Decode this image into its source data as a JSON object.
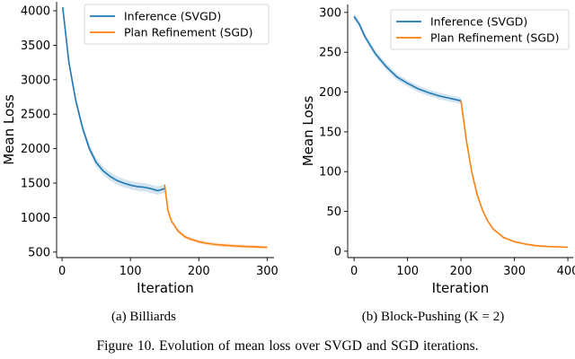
{
  "colors": {
    "inference": "#1f77b4",
    "refinement": "#ff7f0e"
  },
  "chart_data": [
    {
      "type": "line",
      "subcaption": "(a) Billiards",
      "xlabel": "Iteration",
      "ylabel": "Mean Loss",
      "xlim": [
        -8,
        310
      ],
      "ylim": [
        420,
        4130
      ],
      "xticks": [
        0,
        100,
        200,
        300
      ],
      "yticks": [
        500,
        1000,
        1500,
        2000,
        2500,
        3000,
        3500,
        4000
      ],
      "grid": false,
      "legend": "top-right",
      "series": [
        {
          "name": "Inference (SVGD)",
          "color": "#1f77b4",
          "x": [
            1,
            10,
            20,
            30,
            40,
            50,
            60,
            70,
            80,
            90,
            100,
            110,
            120,
            130,
            140,
            150
          ],
          "y": [
            4050,
            3250,
            2700,
            2300,
            2000,
            1800,
            1680,
            1600,
            1540,
            1500,
            1470,
            1450,
            1440,
            1420,
            1390,
            1420
          ],
          "band": 60
        },
        {
          "name": "Plan Refinement (SGD)",
          "color": "#ff7f0e",
          "x": [
            150,
            155,
            160,
            170,
            180,
            190,
            200,
            210,
            220,
            230,
            240,
            250,
            260,
            270,
            280,
            290,
            300
          ],
          "y": [
            1480,
            1100,
            950,
            800,
            720,
            680,
            650,
            630,
            615,
            605,
            598,
            590,
            585,
            580,
            578,
            572,
            570
          ],
          "band": 25
        }
      ]
    },
    {
      "type": "line",
      "subcaption": "(b) Block-Pushing (K = 2)",
      "xlabel": "Iteration",
      "ylabel": "Mean Loss",
      "xlim": [
        -12,
        410
      ],
      "ylim": [
        -8,
        310
      ],
      "xticks": [
        0,
        100,
        200,
        300,
        400
      ],
      "yticks": [
        0,
        50,
        100,
        150,
        200,
        250,
        300
      ],
      "grid": false,
      "legend": "top-right",
      "series": [
        {
          "name": "Inference (SVGD)",
          "color": "#1f77b4",
          "x": [
            0,
            10,
            20,
            40,
            60,
            80,
            100,
            120,
            140,
            160,
            180,
            200
          ],
          "y": [
            295,
            285,
            270,
            248,
            232,
            219,
            211,
            204,
            199,
            195,
            192,
            189
          ],
          "band": 4
        },
        {
          "name": "Plan Refinement (SGD)",
          "color": "#ff7f0e",
          "x": [
            200,
            210,
            220,
            230,
            240,
            250,
            260,
            280,
            300,
            320,
            340,
            360,
            380,
            400
          ],
          "y": [
            189,
            140,
            100,
            72,
            52,
            38,
            28,
            17,
            12,
            9,
            7,
            6,
            5.5,
            5
          ],
          "band": 1
        }
      ]
    }
  ],
  "figure_caption": "Figure 10.  Evolution of mean loss over SVGD and SGD iterations."
}
